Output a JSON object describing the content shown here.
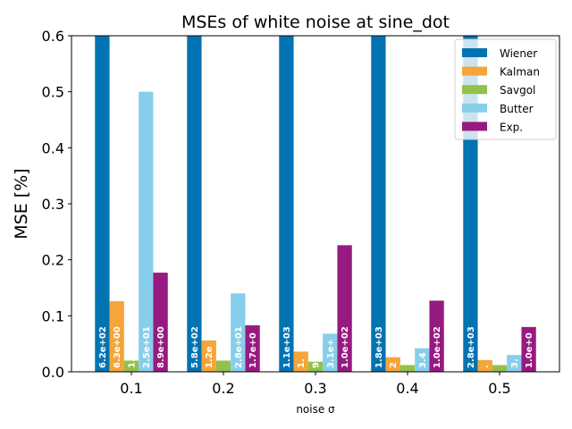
{
  "chart_data": {
    "type": "bar",
    "title": "MSEs of white noise at sine_dot",
    "xlabel": "noise σ",
    "ylabel": "MSE [%]",
    "categories": [
      "0.1",
      "0.2",
      "0.3",
      "0.4",
      "0.5"
    ],
    "ylim": [
      0,
      0.6
    ],
    "yticks": [
      "0.0",
      "0.1",
      "0.2",
      "0.3",
      "0.4",
      "0.5",
      "0.6"
    ],
    "legend_position": "top-right",
    "grid": false,
    "series": [
      {
        "name": "Wiener",
        "color": "#0173b2",
        "values": [
          6.2,
          5.8,
          11,
          18,
          28
        ],
        "labels": [
          "6.2e+02",
          "5.8e+02",
          "1.1e+03",
          "1.8e+03",
          "2.8e+03"
        ]
      },
      {
        "name": "Kalman",
        "color": "#f5a53a",
        "values": [
          0.126,
          0.056,
          0.036,
          0.026,
          0.021
        ],
        "labels": [
          "6.3e+00",
          "1.2e",
          "1.",
          "2",
          "."
        ]
      },
      {
        "name": "Savgol",
        "color": "#91c14a",
        "values": [
          0.02,
          0.02,
          0.018,
          0.012,
          0.012
        ],
        "labels": [
          "1.",
          "",
          "9",
          "",
          ""
        ]
      },
      {
        "name": "Butter",
        "color": "#87ceeb",
        "values": [
          0.5,
          0.14,
          0.068,
          0.042,
          0.03
        ],
        "labels": [
          "2.5e+01",
          "2.8e+01",
          "3.1e+",
          "3.4",
          "3."
        ]
      },
      {
        "name": "Exp.",
        "color": "#961a80",
        "values": [
          0.177,
          0.083,
          0.226,
          0.127,
          0.08
        ],
        "labels": [
          "8.9e+00",
          "1.7e+0",
          "1.0e+02",
          "1.0e+02",
          "1.0e+0"
        ]
      }
    ]
  }
}
